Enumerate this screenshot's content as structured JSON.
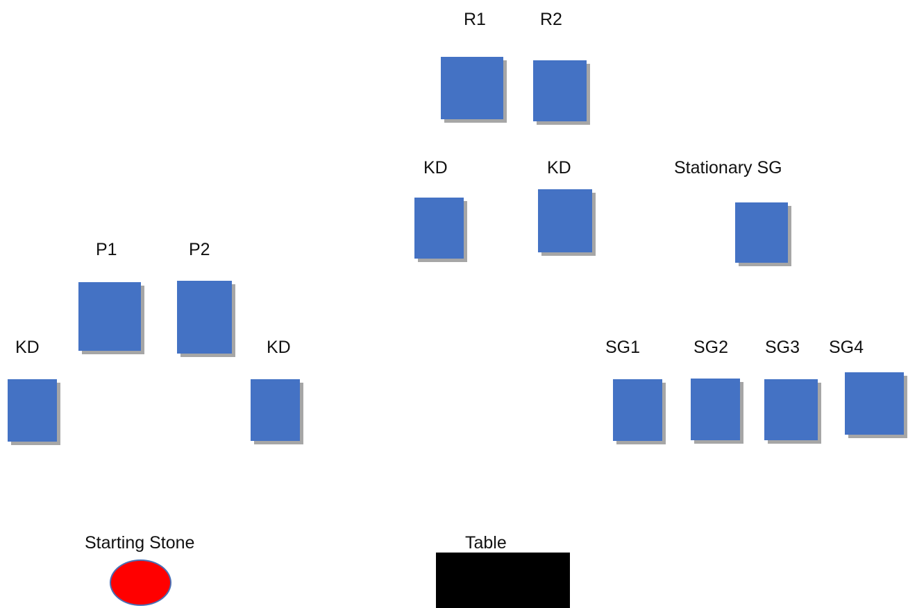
{
  "labels": {
    "r1": "R1",
    "r2": "R2",
    "kd_mid_left": "KD",
    "kd_mid_right": "KD",
    "stationary_sg": "Stationary SG",
    "p1": "P1",
    "p2": "P2",
    "kd_left_outer": "KD",
    "kd_left_inner": "KD",
    "sg1": "SG1",
    "sg2": "SG2",
    "sg3": "SG3",
    "sg4": "SG4",
    "starting_stone": "Starting Stone",
    "table": "Table"
  },
  "colors": {
    "box": "#4472c4",
    "box_shadow": "#a6a6a6",
    "stone_fill": "#ff0000",
    "stone_border": "#4a6fb4",
    "table": "#000000"
  }
}
